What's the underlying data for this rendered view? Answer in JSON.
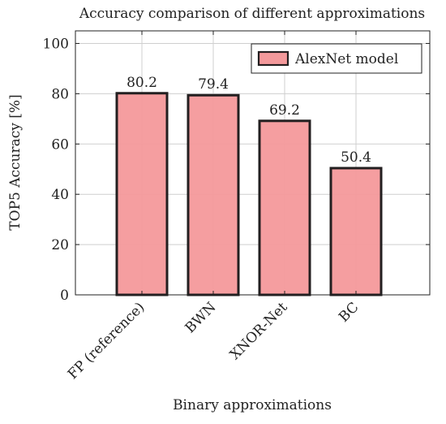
{
  "chart_data": {
    "type": "bar",
    "title": "Accuracy comparison of different approximations",
    "xlabel": "Binary approximations",
    "ylabel": "TOP5 Accuracy [%]",
    "categories": [
      "FP (reference)",
      "BWN",
      "XNOR-Net",
      "BC"
    ],
    "series": [
      {
        "name": "AlexNet model",
        "values": [
          80.2,
          79.4,
          69.2,
          50.4
        ],
        "color": "#f4999b",
        "edge_color": "#231f20"
      }
    ],
    "value_labels": [
      "80.2",
      "79.4",
      "69.2",
      "50.4"
    ],
    "ylim": [
      0,
      105
    ],
    "yticks": [
      0,
      20,
      40,
      60,
      80,
      100
    ],
    "ytick_labels": [
      "0",
      "20",
      "40",
      "60",
      "80",
      "100"
    ],
    "grid": true,
    "legend_position": "top-right"
  }
}
